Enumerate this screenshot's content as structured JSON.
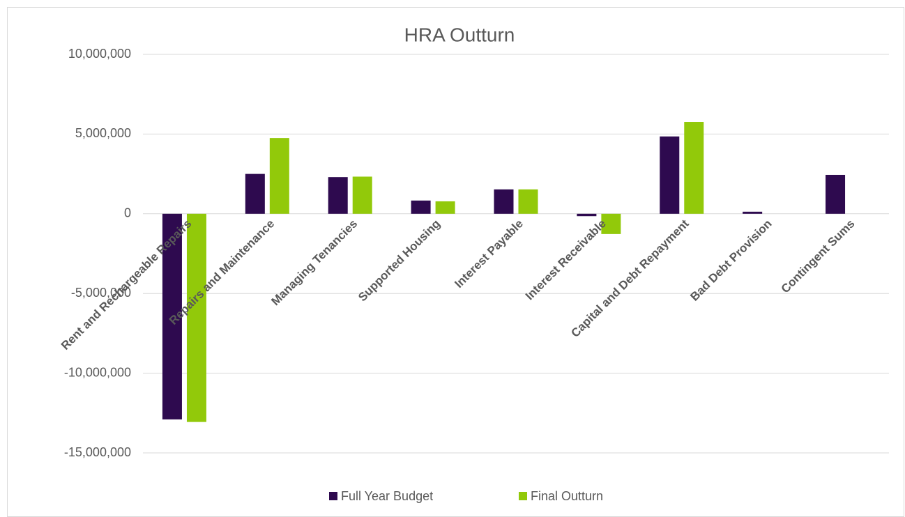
{
  "chart_data": {
    "type": "bar",
    "title": "HRA Outturn",
    "categories": [
      "Rent and Rechargeable Repairs",
      "Repairs and Maintenance",
      "Managing Tenancies",
      "Supported Housing",
      "Interest Payable",
      "Interest Receivable",
      "Capital and Debt Repayment",
      "Bad Debt Provision",
      "Contingent Sums"
    ],
    "series": [
      {
        "name": "Full Year Budget",
        "color": "#2e0a4f",
        "values": [
          -12900000,
          2500000,
          2300000,
          830000,
          1530000,
          -150000,
          4850000,
          130000,
          2440000
        ]
      },
      {
        "name": "Final Outturn",
        "color": "#92c90a",
        "values": [
          -13060000,
          4750000,
          2330000,
          780000,
          1530000,
          -1270000,
          5760000,
          0,
          0
        ]
      }
    ],
    "ylim": [
      -15000000,
      10000000
    ],
    "yticks": [
      {
        "value": -15000000,
        "label": "-15,000,000"
      },
      {
        "value": -10000000,
        "label": "-10,000,000"
      },
      {
        "value": -5000000,
        "label": "-5,000,000"
      },
      0,
      {
        "value": 5000000,
        "label": "5,000,000"
      },
      {
        "value": 10000000,
        "label": "10,000,000"
      }
    ],
    "grid": true,
    "legend": "bottom"
  }
}
